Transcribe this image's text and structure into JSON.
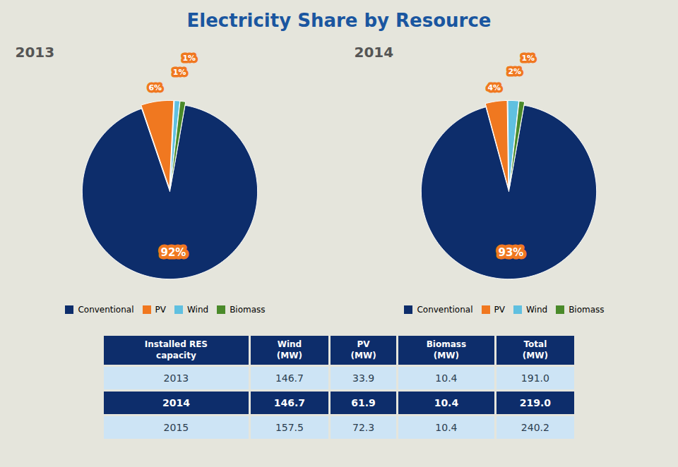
{
  "title": "Electricity Share by Resource",
  "chart_data": [
    {
      "type": "pie",
      "title": "2013",
      "categories": [
        "Conventional",
        "PV",
        "Wind",
        "Biomass"
      ],
      "values": [
        92,
        6,
        1,
        1
      ],
      "value_labels": [
        "92%",
        "6%",
        "1%",
        "1%"
      ],
      "colors": [
        "#0d2d6b",
        "#f07820",
        "#60c0e0",
        "#4a8a2a"
      ],
      "data_labels": true,
      "legend": "bottom"
    },
    {
      "type": "pie",
      "title": "2014",
      "categories": [
        "Conventional",
        "PV",
        "Wind",
        "Biomass"
      ],
      "values": [
        93,
        4,
        2,
        1
      ],
      "value_labels": [
        "93%",
        "4%",
        "2%",
        "1%"
      ],
      "colors": [
        "#0d2d6b",
        "#f07820",
        "#60c0e0",
        "#4a8a2a"
      ],
      "data_labels": true,
      "legend": "bottom"
    },
    {
      "type": "table",
      "columns": [
        "Installed RES\ncapacity",
        "Wind\n(MW)",
        "PV\n(MW)",
        "Biomass\n(MW)",
        "Total\n(MW)"
      ],
      "rows": [
        [
          "2013",
          "146.7",
          "33.9",
          "10.4",
          "191.0"
        ],
        [
          "2014",
          "146.7",
          "61.9",
          "10.4",
          "219.0"
        ],
        [
          "2015",
          "157.5",
          "72.3",
          "10.4",
          "240.2"
        ]
      ]
    }
  ]
}
